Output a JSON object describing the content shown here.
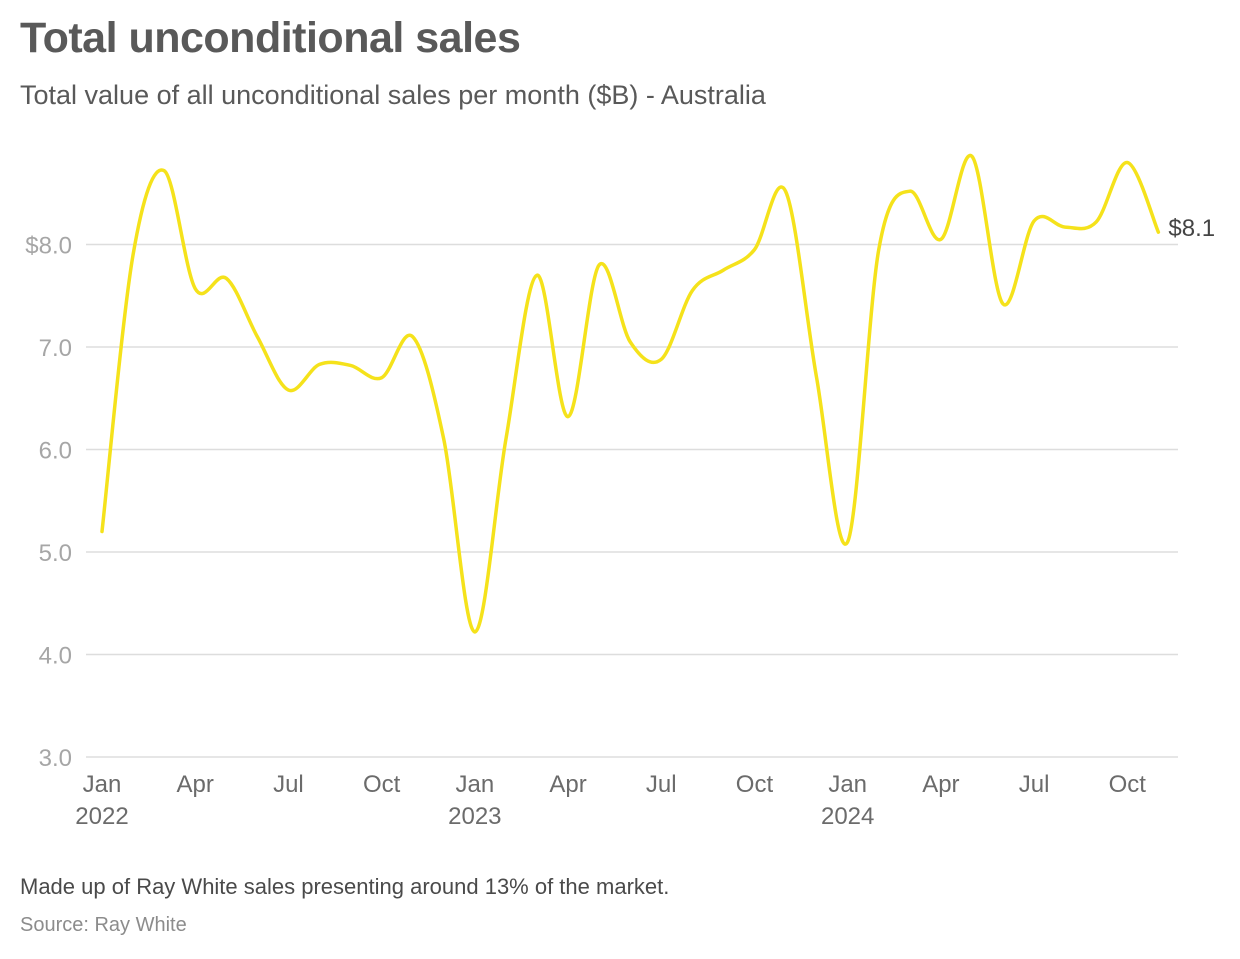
{
  "header": {
    "title": "Total unconditional sales",
    "subtitle": "Total value of all unconditional sales per month ($B) - Australia"
  },
  "footer": {
    "note": "Made up of Ray White sales presenting around 13% of the market.",
    "source": "Source: Ray White"
  },
  "colors": {
    "line": "#f5e21b",
    "grid": "#dddddd"
  },
  "chart_data": {
    "type": "line",
    "grid": true,
    "ylim": [
      3.0,
      9.0
    ],
    "y_ticks": [
      {
        "value": 3.0,
        "label": "3.0"
      },
      {
        "value": 4.0,
        "label": "4.0"
      },
      {
        "value": 5.0,
        "label": "5.0"
      },
      {
        "value": 6.0,
        "label": "6.0"
      },
      {
        "value": 7.0,
        "label": "7.0"
      },
      {
        "value": 8.0,
        "label": "$8.0"
      }
    ],
    "x_ticks": [
      {
        "index": 0,
        "label": "Jan",
        "sublabel": "2022"
      },
      {
        "index": 3,
        "label": "Apr",
        "sublabel": ""
      },
      {
        "index": 6,
        "label": "Jul",
        "sublabel": ""
      },
      {
        "index": 9,
        "label": "Oct",
        "sublabel": ""
      },
      {
        "index": 12,
        "label": "Jan",
        "sublabel": "2023"
      },
      {
        "index": 15,
        "label": "Apr",
        "sublabel": ""
      },
      {
        "index": 18,
        "label": "Jul",
        "sublabel": ""
      },
      {
        "index": 21,
        "label": "Oct",
        "sublabel": ""
      },
      {
        "index": 24,
        "label": "Jan",
        "sublabel": "2024"
      },
      {
        "index": 27,
        "label": "Apr",
        "sublabel": ""
      },
      {
        "index": 30,
        "label": "Jul",
        "sublabel": ""
      },
      {
        "index": 33,
        "label": "Oct",
        "sublabel": ""
      }
    ],
    "x": [
      "2022-01",
      "2022-02",
      "2022-03",
      "2022-04",
      "2022-05",
      "2022-06",
      "2022-07",
      "2022-08",
      "2022-09",
      "2022-10",
      "2022-11",
      "2022-12",
      "2023-01",
      "2023-02",
      "2023-03",
      "2023-04",
      "2023-05",
      "2023-06",
      "2023-07",
      "2023-08",
      "2023-09",
      "2023-10",
      "2023-11",
      "2023-12",
      "2024-01",
      "2024-02",
      "2024-03",
      "2024-04",
      "2024-05",
      "2024-06",
      "2024-07",
      "2024-08",
      "2024-09",
      "2024-10",
      "2024-11"
    ],
    "series": [
      {
        "values": [
          5.2,
          7.9,
          8.72,
          7.57,
          7.67,
          7.1,
          6.58,
          6.83,
          6.82,
          6.7,
          7.1,
          6.1,
          4.22,
          6.1,
          7.7,
          6.32,
          7.8,
          7.05,
          6.88,
          7.55,
          7.75,
          7.95,
          8.52,
          6.7,
          5.1,
          7.95,
          8.52,
          8.05,
          8.86,
          7.42,
          8.23,
          8.17,
          8.22,
          8.8,
          8.12
        ]
      }
    ],
    "end_label": "$8.1"
  }
}
